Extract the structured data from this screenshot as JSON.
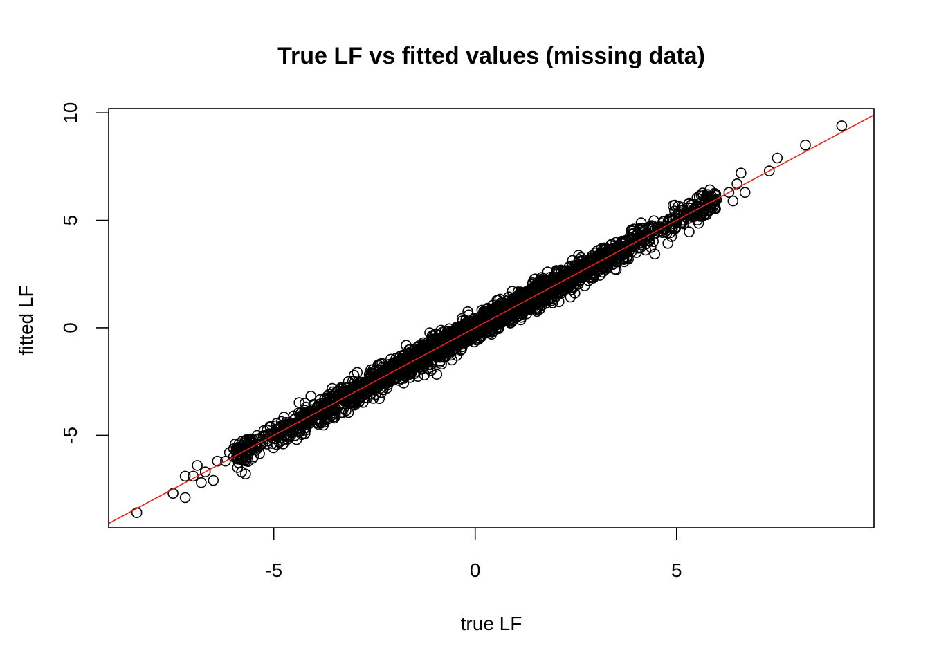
{
  "chart_data": {
    "type": "scatter",
    "title": "True LF vs fitted values (missing data)",
    "xlabel": "true LF",
    "ylabel": "fitted LF",
    "xlim": [
      -9.1,
      9.9
    ],
    "ylim": [
      -9.3,
      10.2
    ],
    "xticks": [
      -5,
      0,
      5
    ],
    "xtick_labels": [
      "-5",
      "0",
      "5"
    ],
    "yticks": [
      -5,
      0,
      5,
      10
    ],
    "ytick_labels": [
      "-5",
      "0",
      "5",
      "10"
    ],
    "grid": false,
    "legend": "none",
    "marker": "open-circle",
    "point_color": "#000000",
    "n_points": 3000,
    "bulk_x_range": [
      -6.0,
      6.0
    ],
    "bulk_noise_sd": 0.3,
    "outliers": [
      {
        "x": -8.4,
        "y": -8.6
      },
      {
        "x": -7.5,
        "y": -7.7
      },
      {
        "x": -7.2,
        "y": -7.9
      },
      {
        "x": -7.2,
        "y": -6.9
      },
      {
        "x": -7.0,
        "y": -6.9
      },
      {
        "x": -6.9,
        "y": -6.4
      },
      {
        "x": -6.8,
        "y": -7.2
      },
      {
        "x": -6.7,
        "y": -6.7
      },
      {
        "x": -6.5,
        "y": -7.1
      },
      {
        "x": -6.4,
        "y": -6.2
      },
      {
        "x": -6.2,
        "y": -6.2
      },
      {
        "x": -6.1,
        "y": -5.8
      },
      {
        "x": -6.0,
        "y": -6.0
      },
      {
        "x": -5.9,
        "y": -6.5
      },
      {
        "x": -5.8,
        "y": -6.7
      },
      {
        "x": -5.7,
        "y": -6.8
      },
      {
        "x": -5.5,
        "y": -6.0
      },
      {
        "x": 6.3,
        "y": 6.3
      },
      {
        "x": 6.4,
        "y": 5.9
      },
      {
        "x": 6.5,
        "y": 6.7
      },
      {
        "x": 6.6,
        "y": 7.2
      },
      {
        "x": 6.7,
        "y": 6.3
      },
      {
        "x": 7.3,
        "y": 7.3
      },
      {
        "x": 7.5,
        "y": 7.9
      },
      {
        "x": 8.2,
        "y": 8.5
      },
      {
        "x": 9.1,
        "y": 9.4
      }
    ],
    "fit_line": {
      "intercept": 0.0,
      "slope": 1.0,
      "color": "#e8231a"
    }
  }
}
